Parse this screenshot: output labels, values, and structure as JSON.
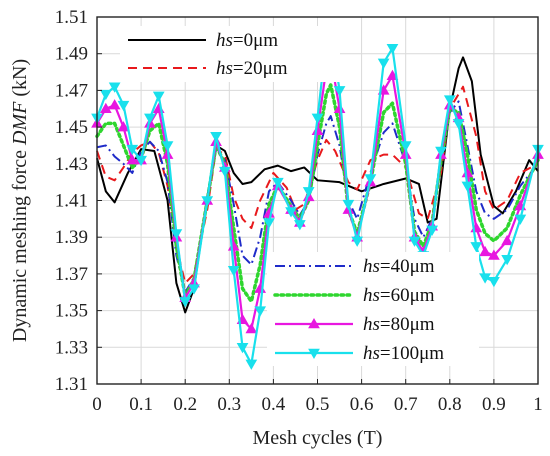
{
  "chart_data": {
    "type": "line",
    "xlabel": "Mesh cycles (T)",
    "ylabel_parts": [
      "Dynamic meshing force ",
      "DMF",
      " (kN)"
    ],
    "xlim": [
      0,
      1
    ],
    "ylim": [
      1.31,
      1.51
    ],
    "xticks": [
      0,
      0.1,
      0.2,
      0.3,
      0.4,
      0.5,
      0.6,
      0.7,
      0.8,
      0.9,
      1
    ],
    "xtick_labels": [
      "0",
      "0.1",
      "0.2",
      "0.3",
      "0.4",
      "0.5",
      "0.6",
      "0.7",
      "0.8",
      "0.9",
      "1"
    ],
    "yticks": [
      1.31,
      1.33,
      1.35,
      1.37,
      1.39,
      1.41,
      1.43,
      1.45,
      1.47,
      1.49,
      1.51
    ],
    "ytick_labels": [
      "1.31",
      "1.33",
      "1.35",
      "1.37",
      "1.39",
      "1.41",
      "1.43",
      "1.45",
      "1.47",
      "1.49",
      "1.51"
    ],
    "grid": true,
    "legends": [
      {
        "placement": "top-left",
        "series": [
          0,
          1
        ]
      },
      {
        "placement": "bottom-right",
        "series": [
          2,
          3,
          4,
          5
        ]
      }
    ],
    "series": [
      {
        "name": "hs=0μm",
        "name_italic": "hs",
        "name_rest": "=0μm",
        "color": "#000000",
        "dash": "solid",
        "marker": "none",
        "points": [
          [
            0,
            1.433
          ],
          [
            0.02,
            1.415
          ],
          [
            0.04,
            1.409
          ],
          [
            0.07,
            1.425
          ],
          [
            0.1,
            1.438
          ],
          [
            0.13,
            1.437
          ],
          [
            0.16,
            1.41
          ],
          [
            0.18,
            1.365
          ],
          [
            0.2,
            1.349
          ],
          [
            0.22,
            1.362
          ],
          [
            0.25,
            1.412
          ],
          [
            0.27,
            1.44
          ],
          [
            0.29,
            1.437
          ],
          [
            0.31,
            1.425
          ],
          [
            0.33,
            1.419
          ],
          [
            0.35,
            1.42
          ],
          [
            0.38,
            1.427
          ],
          [
            0.41,
            1.429
          ],
          [
            0.44,
            1.426
          ],
          [
            0.47,
            1.428
          ],
          [
            0.5,
            1.421
          ],
          [
            0.55,
            1.42
          ],
          [
            0.6,
            1.415
          ],
          [
            0.65,
            1.419
          ],
          [
            0.7,
            1.422
          ],
          [
            0.73,
            1.419
          ],
          [
            0.75,
            1.398
          ],
          [
            0.77,
            1.4
          ],
          [
            0.8,
            1.46
          ],
          [
            0.82,
            1.482
          ],
          [
            0.83,
            1.488
          ],
          [
            0.85,
            1.475
          ],
          [
            0.87,
            1.435
          ],
          [
            0.9,
            1.407
          ],
          [
            0.92,
            1.403
          ],
          [
            0.95,
            1.415
          ],
          [
            0.98,
            1.432
          ],
          [
            1.0,
            1.426
          ]
        ]
      },
      {
        "name": "hs=20μm",
        "name_italic": "hs",
        "name_rest": "=20μm",
        "color": "#e8191c",
        "dash": "dashed",
        "marker": "none",
        "points": [
          [
            0,
            1.437
          ],
          [
            0.02,
            1.423
          ],
          [
            0.04,
            1.421
          ],
          [
            0.06,
            1.428
          ],
          [
            0.08,
            1.436
          ],
          [
            0.1,
            1.44
          ],
          [
            0.12,
            1.442
          ],
          [
            0.14,
            1.436
          ],
          [
            0.16,
            1.418
          ],
          [
            0.18,
            1.385
          ],
          [
            0.2,
            1.365
          ],
          [
            0.22,
            1.37
          ],
          [
            0.25,
            1.405
          ],
          [
            0.27,
            1.438
          ],
          [
            0.29,
            1.435
          ],
          [
            0.31,
            1.412
          ],
          [
            0.33,
            1.4
          ],
          [
            0.35,
            1.395
          ],
          [
            0.37,
            1.41
          ],
          [
            0.4,
            1.425
          ],
          [
            0.43,
            1.417
          ],
          [
            0.45,
            1.405
          ],
          [
            0.47,
            1.408
          ],
          [
            0.5,
            1.432
          ],
          [
            0.52,
            1.443
          ],
          [
            0.54,
            1.437
          ],
          [
            0.57,
            1.42
          ],
          [
            0.59,
            1.416
          ],
          [
            0.62,
            1.432
          ],
          [
            0.65,
            1.435
          ],
          [
            0.67,
            1.435
          ],
          [
            0.7,
            1.428
          ],
          [
            0.73,
            1.403
          ],
          [
            0.75,
            1.4
          ],
          [
            0.78,
            1.425
          ],
          [
            0.8,
            1.46
          ],
          [
            0.83,
            1.472
          ],
          [
            0.86,
            1.445
          ],
          [
            0.88,
            1.415
          ],
          [
            0.9,
            1.405
          ],
          [
            0.93,
            1.41
          ],
          [
            0.96,
            1.425
          ],
          [
            1.0,
            1.43
          ]
        ]
      },
      {
        "name": "hs=40μm",
        "name_italic": "hs",
        "name_rest": "=40μm",
        "color": "#1f2bc9",
        "dash": "dashdot",
        "marker": "none",
        "points": [
          [
            0,
            1.439
          ],
          [
            0.02,
            1.44
          ],
          [
            0.04,
            1.434
          ],
          [
            0.06,
            1.43
          ],
          [
            0.08,
            1.425
          ],
          [
            0.1,
            1.437
          ],
          [
            0.12,
            1.442
          ],
          [
            0.14,
            1.437
          ],
          [
            0.16,
            1.42
          ],
          [
            0.18,
            1.38
          ],
          [
            0.2,
            1.36
          ],
          [
            0.22,
            1.368
          ],
          [
            0.25,
            1.41
          ],
          [
            0.27,
            1.438
          ],
          [
            0.29,
            1.432
          ],
          [
            0.31,
            1.408
          ],
          [
            0.33,
            1.38
          ],
          [
            0.35,
            1.375
          ],
          [
            0.37,
            1.39
          ],
          [
            0.39,
            1.415
          ],
          [
            0.41,
            1.42
          ],
          [
            0.44,
            1.41
          ],
          [
            0.46,
            1.402
          ],
          [
            0.48,
            1.41
          ],
          [
            0.5,
            1.435
          ],
          [
            0.52,
            1.452
          ],
          [
            0.53,
            1.456
          ],
          [
            0.55,
            1.44
          ],
          [
            0.57,
            1.41
          ],
          [
            0.59,
            1.4
          ],
          [
            0.62,
            1.425
          ],
          [
            0.65,
            1.447
          ],
          [
            0.67,
            1.452
          ],
          [
            0.7,
            1.43
          ],
          [
            0.72,
            1.4
          ],
          [
            0.74,
            1.39
          ],
          [
            0.76,
            1.4
          ],
          [
            0.78,
            1.43
          ],
          [
            0.8,
            1.458
          ],
          [
            0.82,
            1.464
          ],
          [
            0.84,
            1.44
          ],
          [
            0.86,
            1.415
          ],
          [
            0.88,
            1.403
          ],
          [
            0.9,
            1.4
          ],
          [
            0.93,
            1.405
          ],
          [
            0.96,
            1.418
          ],
          [
            1.0,
            1.43
          ]
        ]
      },
      {
        "name": "hs=60μm",
        "name_italic": "hs",
        "name_rest": "=60μm",
        "color": "#2fd62f",
        "dash": "dotted",
        "marker": "none",
        "points": [
          [
            0,
            1.445
          ],
          [
            0.02,
            1.452
          ],
          [
            0.04,
            1.452
          ],
          [
            0.06,
            1.44
          ],
          [
            0.08,
            1.428
          ],
          [
            0.1,
            1.433
          ],
          [
            0.12,
            1.448
          ],
          [
            0.14,
            1.452
          ],
          [
            0.16,
            1.43
          ],
          [
            0.18,
            1.385
          ],
          [
            0.2,
            1.358
          ],
          [
            0.22,
            1.367
          ],
          [
            0.25,
            1.41
          ],
          [
            0.27,
            1.44
          ],
          [
            0.29,
            1.43
          ],
          [
            0.31,
            1.395
          ],
          [
            0.33,
            1.362
          ],
          [
            0.35,
            1.355
          ],
          [
            0.37,
            1.375
          ],
          [
            0.39,
            1.408
          ],
          [
            0.41,
            1.418
          ],
          [
            0.44,
            1.407
          ],
          [
            0.46,
            1.4
          ],
          [
            0.48,
            1.41
          ],
          [
            0.5,
            1.44
          ],
          [
            0.52,
            1.468
          ],
          [
            0.53,
            1.473
          ],
          [
            0.55,
            1.45
          ],
          [
            0.57,
            1.405
          ],
          [
            0.59,
            1.392
          ],
          [
            0.62,
            1.42
          ],
          [
            0.65,
            1.458
          ],
          [
            0.67,
            1.463
          ],
          [
            0.7,
            1.43
          ],
          [
            0.72,
            1.393
          ],
          [
            0.74,
            1.385
          ],
          [
            0.76,
            1.398
          ],
          [
            0.78,
            1.432
          ],
          [
            0.8,
            1.46
          ],
          [
            0.82,
            1.458
          ],
          [
            0.84,
            1.435
          ],
          [
            0.86,
            1.405
          ],
          [
            0.88,
            1.392
          ],
          [
            0.9,
            1.388
          ],
          [
            0.93,
            1.395
          ],
          [
            0.96,
            1.413
          ],
          [
            1.0,
            1.432
          ]
        ]
      },
      {
        "name": "hs=80μm",
        "name_italic": "hs",
        "name_rest": "=80μm",
        "color": "#e817e0",
        "dash": "solid",
        "marker": "triangle-up",
        "points": [
          [
            0,
            1.452
          ],
          [
            0.02,
            1.46
          ],
          [
            0.04,
            1.462
          ],
          [
            0.06,
            1.45
          ],
          [
            0.08,
            1.432
          ],
          [
            0.1,
            1.432
          ],
          [
            0.12,
            1.452
          ],
          [
            0.14,
            1.46
          ],
          [
            0.16,
            1.435
          ],
          [
            0.18,
            1.39
          ],
          [
            0.2,
            1.357
          ],
          [
            0.22,
            1.365
          ],
          [
            0.25,
            1.41
          ],
          [
            0.27,
            1.442
          ],
          [
            0.29,
            1.428
          ],
          [
            0.31,
            1.385
          ],
          [
            0.33,
            1.345
          ],
          [
            0.35,
            1.34
          ],
          [
            0.37,
            1.362
          ],
          [
            0.39,
            1.403
          ],
          [
            0.41,
            1.418
          ],
          [
            0.44,
            1.405
          ],
          [
            0.46,
            1.398
          ],
          [
            0.48,
            1.412
          ],
          [
            0.5,
            1.448
          ],
          [
            0.52,
            1.482
          ],
          [
            0.53,
            1.488
          ],
          [
            0.55,
            1.46
          ],
          [
            0.57,
            1.405
          ],
          [
            0.59,
            1.39
          ],
          [
            0.62,
            1.42
          ],
          [
            0.65,
            1.47
          ],
          [
            0.67,
            1.478
          ],
          [
            0.7,
            1.435
          ],
          [
            0.72,
            1.39
          ],
          [
            0.74,
            1.382
          ],
          [
            0.76,
            1.396
          ],
          [
            0.78,
            1.435
          ],
          [
            0.8,
            1.462
          ],
          [
            0.82,
            1.455
          ],
          [
            0.84,
            1.425
          ],
          [
            0.86,
            1.395
          ],
          [
            0.88,
            1.382
          ],
          [
            0.9,
            1.38
          ],
          [
            0.93,
            1.388
          ],
          [
            0.96,
            1.407
          ],
          [
            1.0,
            1.435
          ]
        ]
      },
      {
        "name": "hs=100μm",
        "name_italic": "hs",
        "name_rest": "=100μm",
        "color": "#19e0ec",
        "dash": "solid",
        "marker": "triangle-down",
        "points": [
          [
            0,
            1.455
          ],
          [
            0.02,
            1.468
          ],
          [
            0.04,
            1.472
          ],
          [
            0.06,
            1.462
          ],
          [
            0.08,
            1.438
          ],
          [
            0.1,
            1.432
          ],
          [
            0.12,
            1.455
          ],
          [
            0.14,
            1.467
          ],
          [
            0.16,
            1.44
          ],
          [
            0.18,
            1.392
          ],
          [
            0.2,
            1.355
          ],
          [
            0.22,
            1.362
          ],
          [
            0.25,
            1.41
          ],
          [
            0.27,
            1.445
          ],
          [
            0.29,
            1.426
          ],
          [
            0.31,
            1.372
          ],
          [
            0.33,
            1.33
          ],
          [
            0.35,
            1.321
          ],
          [
            0.37,
            1.35
          ],
          [
            0.39,
            1.398
          ],
          [
            0.41,
            1.42
          ],
          [
            0.44,
            1.404
          ],
          [
            0.46,
            1.397
          ],
          [
            0.48,
            1.415
          ],
          [
            0.5,
            1.455
          ],
          [
            0.52,
            1.497
          ],
          [
            0.53,
            1.502
          ],
          [
            0.55,
            1.47
          ],
          [
            0.57,
            1.408
          ],
          [
            0.59,
            1.388
          ],
          [
            0.62,
            1.422
          ],
          [
            0.65,
            1.485
          ],
          [
            0.67,
            1.493
          ],
          [
            0.7,
            1.44
          ],
          [
            0.72,
            1.388
          ],
          [
            0.74,
            1.38
          ],
          [
            0.76,
            1.394
          ],
          [
            0.78,
            1.437
          ],
          [
            0.8,
            1.465
          ],
          [
            0.82,
            1.452
          ],
          [
            0.84,
            1.418
          ],
          [
            0.86,
            1.385
          ],
          [
            0.88,
            1.368
          ],
          [
            0.9,
            1.366
          ],
          [
            0.93,
            1.378
          ],
          [
            0.96,
            1.4
          ],
          [
            1.0,
            1.438
          ]
        ]
      }
    ]
  }
}
